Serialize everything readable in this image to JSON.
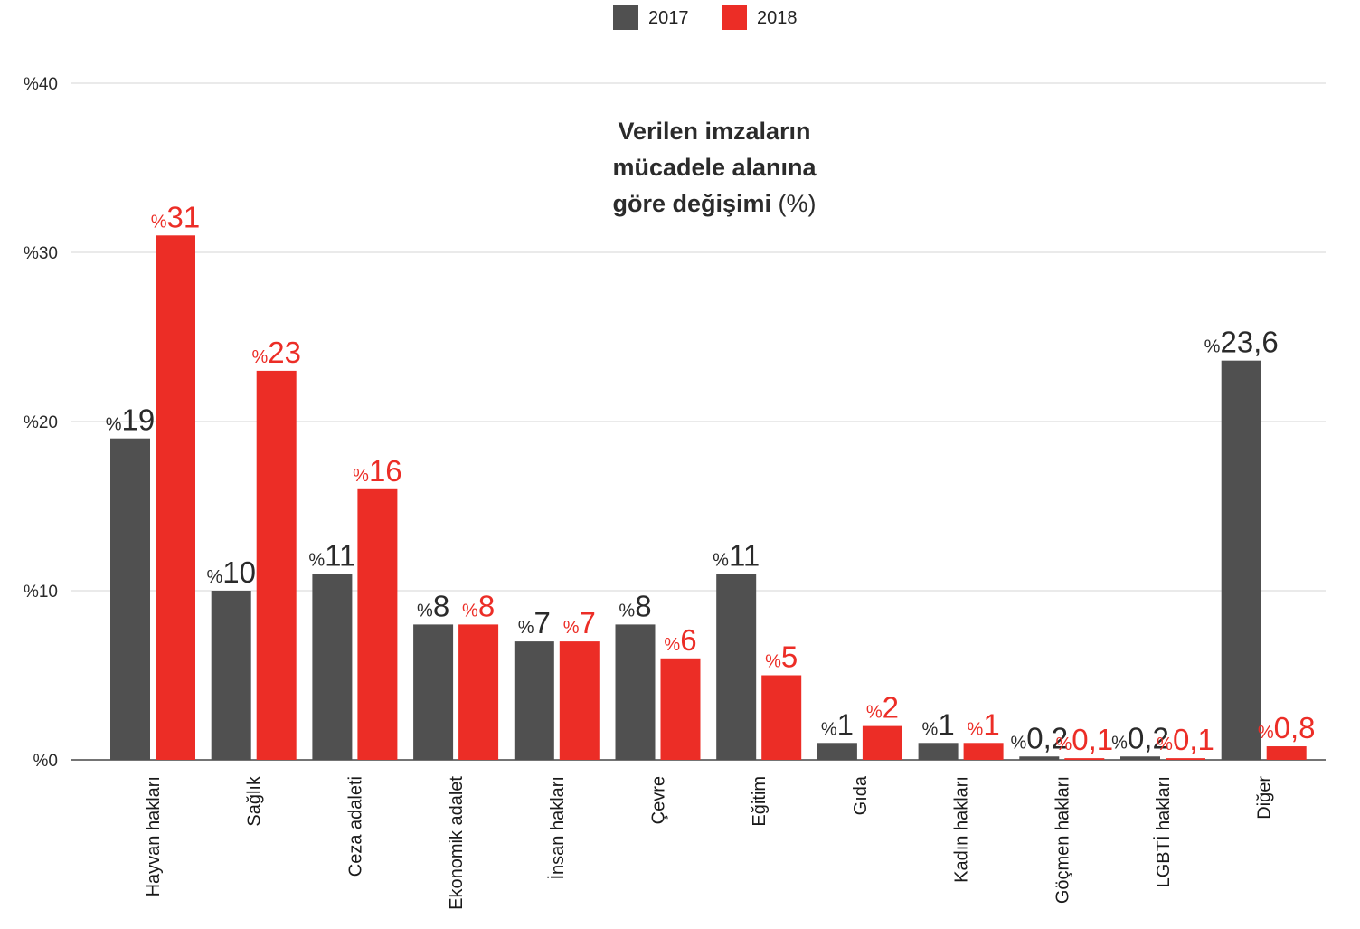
{
  "chart_data": {
    "type": "bar",
    "title_lines": [
      "Verilen imzaların",
      "mücadele alanına",
      "göre değişimi"
    ],
    "title_unit": "(%)",
    "xlabel": "",
    "ylabel": "",
    "ylim": [
      0,
      40
    ],
    "yticks": [
      0,
      10,
      20,
      30,
      40
    ],
    "ytick_labels": [
      "%0",
      "%10",
      "%20",
      "%30",
      "%40"
    ],
    "grid": true,
    "legend_position": "top-center",
    "value_prefix": "%",
    "categories": [
      "Hayvan hakları",
      "Sağlık",
      "Ceza adaleti",
      "Ekonomik adalet",
      "İnsan hakları",
      "Çevre",
      "Eğitim",
      "Gıda",
      "Kadın hakları",
      "Göçmen hakları",
      "LGBTİ hakları",
      "Diğer"
    ],
    "series": [
      {
        "name": "2017",
        "color": "#505050",
        "values": [
          19,
          10,
          11,
          8,
          7,
          8,
          11,
          1,
          1,
          0.2,
          0.2,
          23.6
        ],
        "labels": [
          "19",
          "10",
          "11",
          "8",
          "7",
          "8",
          "11",
          "1",
          "1",
          "0,2",
          "0,2",
          "23,6"
        ],
        "label_color": "#2a2a2a"
      },
      {
        "name": "2018",
        "color": "#ec2d26",
        "values": [
          31,
          23,
          16,
          8,
          7,
          6,
          5,
          2,
          1,
          0.1,
          0.1,
          0.8
        ],
        "labels": [
          "31",
          "23",
          "16",
          "8",
          "7",
          "6",
          "5",
          "2",
          "1",
          "0,1",
          "0,1",
          "0,8"
        ],
        "label_color": "#ec2d26"
      }
    ]
  }
}
